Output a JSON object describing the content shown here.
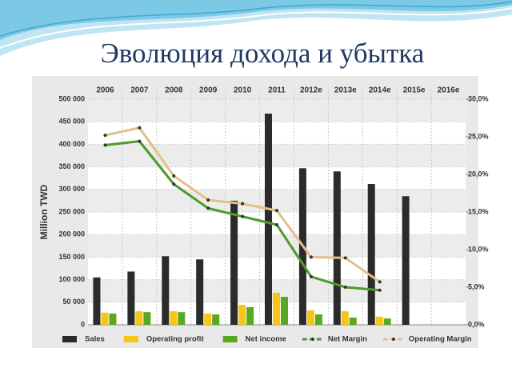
{
  "chart_data": {
    "type": "bar",
    "title": "Эволюция дохода и убытка",
    "ylabel": "Million TWD",
    "categories": [
      "2006",
      "2007",
      "2008",
      "2009",
      "2010",
      "2011",
      "2012e",
      "2013e",
      "2014e",
      "2015e",
      "2016e"
    ],
    "series": [
      {
        "name": "Sales",
        "type": "bar",
        "color": "#2b2b2b",
        "values": [
          105000,
          118000,
          152000,
          145000,
          275000,
          468000,
          347000,
          340000,
          312000,
          285000,
          null
        ]
      },
      {
        "name": "Operating profit",
        "type": "bar",
        "color": "#f5c518",
        "values": [
          27000,
          30000,
          30000,
          25000,
          44000,
          71000,
          32000,
          30000,
          18000,
          null,
          null
        ]
      },
      {
        "name": "Net income",
        "type": "bar",
        "color": "#5aa820",
        "values": [
          25000,
          28000,
          28000,
          23000,
          39000,
          62000,
          23000,
          16000,
          14000,
          null,
          null
        ]
      },
      {
        "name": "Net Margin",
        "type": "line",
        "axis": "y2",
        "color": "#4e9a2a",
        "values": [
          23.9,
          24.4,
          18.7,
          15.5,
          14.4,
          13.3,
          6.4,
          5.0,
          4.6,
          null,
          null
        ]
      },
      {
        "name": "Operating Margin",
        "type": "line",
        "axis": "y2",
        "color": "#e3c088",
        "values": [
          25.2,
          26.2,
          19.8,
          16.6,
          16.1,
          15.2,
          9.0,
          8.9,
          5.7,
          null,
          null
        ]
      }
    ],
    "ylim": [
      0,
      500000
    ],
    "yticks": [
      0,
      {
        "value": 50000,
        "label": "50 000"
      },
      {
        "value": 100000,
        "label": "100 000"
      },
      {
        "value": 150000,
        "label": "150 000"
      },
      {
        "value": 200000,
        "label": "200 000"
      },
      {
        "value": 250000,
        "label": "250 000"
      },
      {
        "value": 300000,
        "label": "300 000"
      },
      {
        "value": 350000,
        "label": "350 000"
      },
      {
        "value": 400000,
        "label": "400 000"
      },
      {
        "value": 450000,
        "label": "450 000"
      },
      {
        "value": 500000,
        "label": "500 000"
      }
    ],
    "y2lim": [
      0,
      30
    ],
    "y2ticks": [
      {
        "value": 0,
        "label": "0,0%"
      },
      {
        "value": 5,
        "label": "5,0%"
      },
      {
        "value": 10,
        "label": "10,0%"
      },
      {
        "value": 15,
        "label": "15,0%"
      },
      {
        "value": 20,
        "label": "20,0%"
      },
      {
        "value": 25,
        "label": "25,0%"
      },
      {
        "value": 30,
        "label": "30,0%"
      }
    ],
    "grid": true,
    "legend": "bottom"
  }
}
